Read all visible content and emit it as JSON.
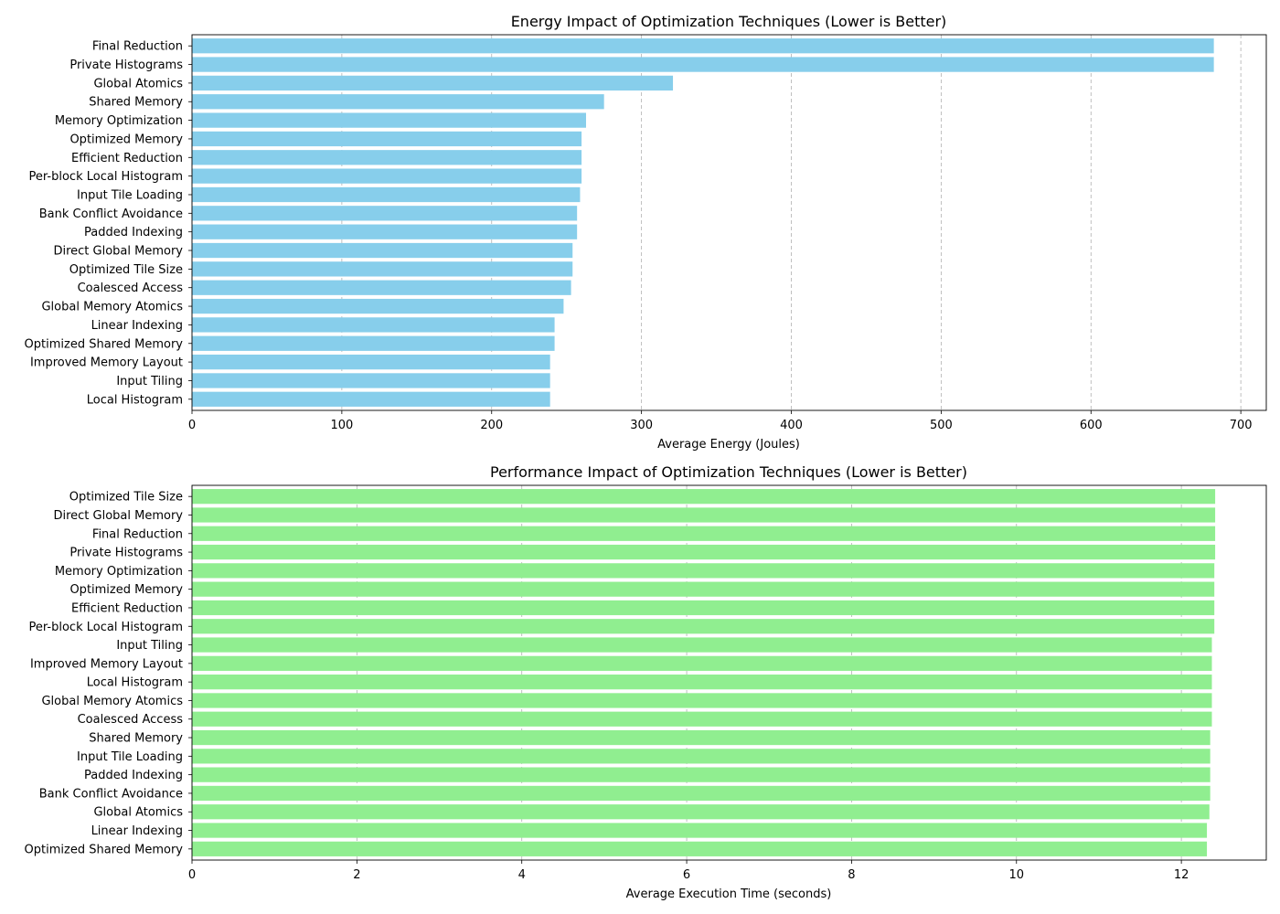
{
  "chart_data": [
    {
      "type": "bar",
      "orientation": "horizontal",
      "title": "Energy Impact of Optimization Techniques (Lower is Better)",
      "xlabel": "Average Energy (Joules)",
      "ylabel": "",
      "xlim": [
        0,
        717
      ],
      "xticks": [
        0,
        100,
        200,
        300,
        400,
        500,
        600,
        700
      ],
      "grid": "x-dashed",
      "bar_color": "#87ceeb",
      "categories": [
        "Final Reduction",
        "Private Histograms",
        "Global Atomics",
        "Shared Memory",
        "Memory Optimization",
        "Optimized Memory",
        "Efficient Reduction",
        "Per-block Local Histogram",
        "Input Tile Loading",
        "Bank Conflict Avoidance",
        "Padded Indexing",
        "Direct Global Memory",
        "Optimized Tile Size",
        "Coalesced Access",
        "Global Memory Atomics",
        "Linear Indexing",
        "Optimized Shared Memory",
        "Improved Memory Layout",
        "Input Tiling",
        "Local Histogram"
      ],
      "values": [
        682,
        682,
        321,
        275,
        263,
        260,
        260,
        260,
        259,
        257,
        257,
        254,
        254,
        253,
        248,
        242,
        242,
        239,
        239,
        239
      ]
    },
    {
      "type": "bar",
      "orientation": "horizontal",
      "title": "Performance Impact of Optimization Techniques (Lower is Better)",
      "xlabel": "Average Execution Time (seconds)",
      "ylabel": "",
      "xlim": [
        0,
        13.03
      ],
      "xticks": [
        0,
        2,
        4,
        6,
        8,
        10,
        12
      ],
      "grid": "x-dashed",
      "bar_color": "#90ee90",
      "categories": [
        "Optimized Tile Size",
        "Direct Global Memory",
        "Final Reduction",
        "Private Histograms",
        "Memory Optimization",
        "Optimized Memory",
        "Efficient Reduction",
        "Per-block Local Histogram",
        "Input Tiling",
        "Improved Memory Layout",
        "Local Histogram",
        "Global Memory Atomics",
        "Coalesced Access",
        "Shared Memory",
        "Input Tile Loading",
        "Padded Indexing",
        "Bank Conflict Avoidance",
        "Global Atomics",
        "Linear Indexing",
        "Optimized Shared Memory"
      ],
      "values": [
        12.41,
        12.41,
        12.41,
        12.41,
        12.4,
        12.4,
        12.4,
        12.4,
        12.37,
        12.37,
        12.37,
        12.37,
        12.37,
        12.35,
        12.35,
        12.35,
        12.35,
        12.34,
        12.31,
        12.31
      ]
    }
  ]
}
